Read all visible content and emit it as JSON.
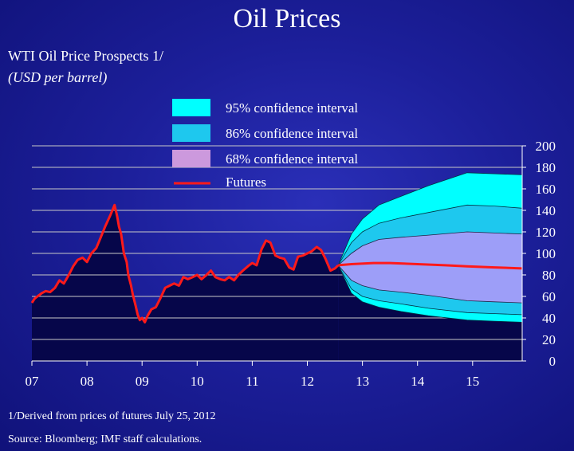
{
  "title": "Oil Prices",
  "subtitle": "WTI Oil Price Prospects 1/",
  "unit_label": "(USD per barrel)",
  "footnote": "1/Derived from prices of futures July 25, 2012",
  "source": "Source:  Bloomberg; IMF staff calculations.",
  "colors": {
    "ci95": "#00ffff",
    "ci86": "#1ec8ee",
    "ci68": "#9d9ef8",
    "ci68_legend": "#cc99dd",
    "futures": "#ff1a1a",
    "history_area": "#06064a",
    "grid": "#c8c8c8"
  },
  "chart_data": {
    "type": "area",
    "xlabel": "",
    "ylabel": "",
    "x_tick_labels": [
      "07",
      "08",
      "09",
      "10",
      "11",
      "12",
      "13",
      "14",
      "15"
    ],
    "x_ticks": [
      2007,
      2008,
      2009,
      2010,
      2011,
      2012,
      2013,
      2014,
      2015
    ],
    "xlim": [
      2007,
      2015.9
    ],
    "ylim": [
      0,
      200
    ],
    "y_ticks": [
      0,
      20,
      40,
      60,
      80,
      100,
      120,
      140,
      160,
      180,
      200
    ],
    "y_tick_labels": [
      "0",
      "20",
      "40",
      "60",
      "80",
      "100",
      "120",
      "140",
      "160",
      "180",
      "200"
    ],
    "y_axis_side": "right",
    "grid": true,
    "legend": {
      "placement": "top-center",
      "entries": [
        "95% confidence interval",
        "86% confidence interval",
        "68% confidence interval",
        "Futures"
      ]
    },
    "series": [
      {
        "kind": "history",
        "x": [
          2007.0,
          2007.05,
          2007.1,
          2007.18,
          2007.25,
          2007.33,
          2007.42,
          2007.5,
          2007.58,
          2007.67,
          2007.75,
          2007.83,
          2007.92,
          2008.0,
          2008.08,
          2008.17,
          2008.25,
          2008.33,
          2008.42,
          2008.5,
          2008.55,
          2008.58,
          2008.62,
          2008.67,
          2008.72,
          2008.75,
          2008.8,
          2008.83,
          2008.88,
          2008.92,
          2008.96,
          2009.0,
          2009.05,
          2009.1,
          2009.17,
          2009.25,
          2009.33,
          2009.42,
          2009.5,
          2009.58,
          2009.67,
          2009.75,
          2009.83,
          2009.92,
          2010.0,
          2010.08,
          2010.17,
          2010.25,
          2010.33,
          2010.42,
          2010.5,
          2010.58,
          2010.67,
          2010.75,
          2010.83,
          2010.92,
          2011.0,
          2011.08,
          2011.17,
          2011.25,
          2011.33,
          2011.42,
          2011.5,
          2011.58,
          2011.67,
          2011.75,
          2011.83,
          2011.92,
          2012.0,
          2012.08,
          2012.17,
          2012.25,
          2012.33,
          2012.42,
          2012.5,
          2012.56
        ],
        "values": [
          54,
          58,
          60,
          63,
          65,
          64,
          68,
          75,
          72,
          80,
          88,
          94,
          96,
          92,
          100,
          105,
          115,
          125,
          135,
          145,
          134,
          125,
          118,
          100,
          92,
          80,
          70,
          62,
          52,
          43,
          38,
          40,
          36,
          42,
          48,
          50,
          58,
          68,
          70,
          72,
          70,
          78,
          76,
          78,
          80,
          76,
          80,
          84,
          78,
          76,
          75,
          78,
          75,
          80,
          84,
          88,
          91,
          89,
          104,
          112,
          110,
          98,
          96,
          95,
          87,
          85,
          97,
          98,
          100,
          102,
          106,
          103,
          95,
          84,
          86,
          89
        ]
      },
      {
        "name": "Futures",
        "x": [
          2012.56,
          2012.8,
          2013.2,
          2013.5,
          2014.0,
          2014.5,
          2014.9,
          2015.4,
          2015.9
        ],
        "values": [
          89,
          90,
          91,
          91,
          90,
          89,
          88,
          87,
          86
        ]
      },
      {
        "name": "95% confidence interval",
        "x": [
          2012.56,
          2012.8,
          2013.0,
          2013.3,
          2013.7,
          2014.2,
          2014.9,
          2015.4,
          2015.9
        ],
        "upper": [
          89,
          118,
          132,
          145,
          153,
          163,
          175,
          174,
          173
        ],
        "lower": [
          89,
          63,
          55,
          50,
          46,
          42,
          38,
          37,
          36
        ]
      },
      {
        "name": "86% confidence interval",
        "x": [
          2012.56,
          2012.8,
          2013.0,
          2013.3,
          2013.7,
          2014.2,
          2014.9,
          2015.4,
          2015.9
        ],
        "upper": [
          89,
          110,
          120,
          128,
          133,
          138,
          145,
          144,
          142
        ],
        "lower": [
          89,
          67,
          60,
          56,
          53,
          49,
          45,
          44,
          43
        ]
      },
      {
        "name": "68% confidence interval",
        "x": [
          2012.56,
          2012.8,
          2013.0,
          2013.3,
          2013.7,
          2014.2,
          2014.9,
          2015.4,
          2015.9
        ],
        "upper": [
          89,
          100,
          107,
          113,
          115,
          117,
          120,
          119,
          118
        ],
        "lower": [
          89,
          75,
          70,
          66,
          64,
          61,
          56,
          55,
          54
        ]
      }
    ]
  }
}
